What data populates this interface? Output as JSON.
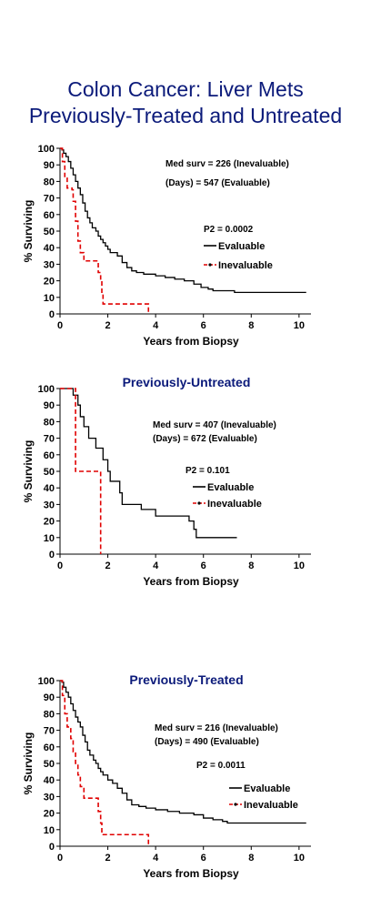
{
  "title": [
    "Colon Cancer: Liver Mets",
    "Previously-Treated and Untreated"
  ],
  "colors": {
    "title": "#0b1a7a",
    "evaluable": "#000000",
    "inevaluable": "#e00000"
  },
  "chart_data": [
    {
      "type": "line",
      "title": "",
      "xlabel": "Years from Biopsy",
      "ylabel": "% Surviving",
      "xlim": [
        0,
        10.5
      ],
      "ylim": [
        0,
        100
      ],
      "xticks": [
        "0",
        "2",
        "4",
        "6",
        "8",
        "10"
      ],
      "yticks": [
        "0",
        "10",
        "20",
        "30",
        "40",
        "50",
        "60",
        "70",
        "80",
        "90",
        "100"
      ],
      "annotation": [
        "Med surv =   226 (Inevaluable)",
        "(Days)    =   547 (Evaluable)"
      ],
      "pvalue": "P2 = 0.0002",
      "legend": [
        "Evaluable",
        "Inevaluable"
      ],
      "series": [
        {
          "name": "Evaluable",
          "style": "solid",
          "points": [
            [
              0,
              100
            ],
            [
              0.08,
              99
            ],
            [
              0.15,
              97
            ],
            [
              0.25,
              95
            ],
            [
              0.35,
              92
            ],
            [
              0.45,
              88
            ],
            [
              0.55,
              84
            ],
            [
              0.65,
              80
            ],
            [
              0.75,
              76
            ],
            [
              0.85,
              72
            ],
            [
              0.95,
              67
            ],
            [
              1.05,
              62
            ],
            [
              1.15,
              58
            ],
            [
              1.25,
              55
            ],
            [
              1.35,
              52
            ],
            [
              1.5,
              50
            ],
            [
              1.6,
              47
            ],
            [
              1.7,
              45
            ],
            [
              1.8,
              43
            ],
            [
              1.9,
              41
            ],
            [
              2.0,
              39
            ],
            [
              2.1,
              37
            ],
            [
              2.4,
              35
            ],
            [
              2.6,
              31
            ],
            [
              2.8,
              28
            ],
            [
              3.0,
              26
            ],
            [
              3.2,
              25
            ],
            [
              3.5,
              24
            ],
            [
              4.0,
              23
            ],
            [
              4.4,
              22
            ],
            [
              4.8,
              21
            ],
            [
              5.2,
              20
            ],
            [
              5.6,
              18
            ],
            [
              5.9,
              16
            ],
            [
              6.2,
              15
            ],
            [
              6.4,
              14
            ],
            [
              7.0,
              14
            ],
            [
              7.3,
              13
            ],
            [
              10.3,
              13
            ]
          ]
        },
        {
          "name": "Inevaluable",
          "style": "dashed",
          "points": [
            [
              0,
              100
            ],
            [
              0.1,
              92
            ],
            [
              0.2,
              82
            ],
            [
              0.3,
              76
            ],
            [
              0.5,
              75
            ],
            [
              0.55,
              68
            ],
            [
              0.65,
              56
            ],
            [
              0.75,
              44
            ],
            [
              0.85,
              37
            ],
            [
              1.0,
              32
            ],
            [
              1.5,
              32
            ],
            [
              1.6,
              25
            ],
            [
              1.7,
              20
            ],
            [
              1.75,
              12
            ],
            [
              1.8,
              6
            ],
            [
              3.7,
              6
            ],
            [
              3.7,
              0
            ]
          ]
        }
      ]
    },
    {
      "type": "line",
      "title": "Previously-Untreated",
      "xlabel": "Years from Biopsy",
      "ylabel": "% Surviving",
      "xlim": [
        0,
        10.5
      ],
      "ylim": [
        0,
        100
      ],
      "xticks": [
        "0",
        "2",
        "4",
        "6",
        "8",
        "10"
      ],
      "yticks": [
        "0",
        "10",
        "20",
        "30",
        "40",
        "50",
        "60",
        "70",
        "80",
        "90",
        "100"
      ],
      "annotation": [
        "Med surv =   407 (Inevaluable)",
        "(Days)    =   672 (Evaluable)"
      ],
      "pvalue": "P2 = 0.101",
      "legend": [
        "Evaluable",
        "Inevaluable"
      ],
      "series": [
        {
          "name": "Evaluable",
          "style": "solid",
          "points": [
            [
              0,
              100
            ],
            [
              0.55,
              96
            ],
            [
              0.75,
              90
            ],
            [
              0.85,
              83
            ],
            [
              1.0,
              77
            ],
            [
              1.2,
              70
            ],
            [
              1.5,
              64
            ],
            [
              1.8,
              57
            ],
            [
              2.0,
              50
            ],
            [
              2.1,
              44
            ],
            [
              2.5,
              37
            ],
            [
              2.6,
              30
            ],
            [
              3.4,
              27
            ],
            [
              4.0,
              23
            ],
            [
              5.4,
              20
            ],
            [
              5.6,
              15
            ],
            [
              5.7,
              10
            ],
            [
              7.4,
              10
            ]
          ]
        },
        {
          "name": "Inevaluable",
          "style": "dashed",
          "points": [
            [
              0,
              100
            ],
            [
              0.6,
              100
            ],
            [
              0.65,
              50
            ],
            [
              1.7,
              50
            ],
            [
              1.7,
              0
            ]
          ]
        }
      ]
    },
    {
      "type": "line",
      "title": "Previously-Treated",
      "xlabel": "Years from Biopsy",
      "ylabel": "% Surviving",
      "xlim": [
        0,
        10.5
      ],
      "ylim": [
        0,
        100
      ],
      "xticks": [
        "0",
        "2",
        "4",
        "6",
        "8",
        "10"
      ],
      "yticks": [
        "0",
        "10",
        "20",
        "30",
        "40",
        "50",
        "60",
        "70",
        "80",
        "90",
        "100"
      ],
      "annotation": [
        "Med surv =   216 (Inevaluable)",
        "(Days)    =   490 (Evaluable)"
      ],
      "pvalue": "P2 = 0.0011",
      "legend": [
        "Evaluable",
        "Inevaluable"
      ],
      "series": [
        {
          "name": "Evaluable",
          "style": "solid",
          "points": [
            [
              0,
              100
            ],
            [
              0.08,
              99
            ],
            [
              0.15,
              96
            ],
            [
              0.25,
              93
            ],
            [
              0.35,
              90
            ],
            [
              0.45,
              86
            ],
            [
              0.55,
              82
            ],
            [
              0.65,
              78
            ],
            [
              0.75,
              75
            ],
            [
              0.85,
              72
            ],
            [
              0.95,
              67
            ],
            [
              1.05,
              63
            ],
            [
              1.15,
              58
            ],
            [
              1.25,
              55
            ],
            [
              1.4,
              52
            ],
            [
              1.5,
              50
            ],
            [
              1.6,
              47
            ],
            [
              1.7,
              45
            ],
            [
              1.8,
              43
            ],
            [
              2.0,
              40
            ],
            [
              2.2,
              38
            ],
            [
              2.4,
              35
            ],
            [
              2.6,
              32
            ],
            [
              2.8,
              28
            ],
            [
              3.0,
              25
            ],
            [
              3.3,
              24
            ],
            [
              3.6,
              23
            ],
            [
              4.0,
              22
            ],
            [
              4.5,
              21
            ],
            [
              5.0,
              20
            ],
            [
              5.6,
              19
            ],
            [
              6.0,
              17
            ],
            [
              6.4,
              16
            ],
            [
              6.8,
              15
            ],
            [
              7.0,
              14
            ],
            [
              10.3,
              14
            ]
          ]
        },
        {
          "name": "Inevaluable",
          "style": "dashed",
          "points": [
            [
              0,
              100
            ],
            [
              0.1,
              91
            ],
            [
              0.2,
              80
            ],
            [
              0.3,
              72
            ],
            [
              0.45,
              65
            ],
            [
              0.55,
              57
            ],
            [
              0.65,
              50
            ],
            [
              0.75,
              43
            ],
            [
              0.85,
              36
            ],
            [
              1.0,
              29
            ],
            [
              1.5,
              29
            ],
            [
              1.6,
              21
            ],
            [
              1.7,
              14
            ],
            [
              1.75,
              7
            ],
            [
              3.7,
              7
            ],
            [
              3.7,
              0
            ]
          ]
        }
      ]
    }
  ]
}
